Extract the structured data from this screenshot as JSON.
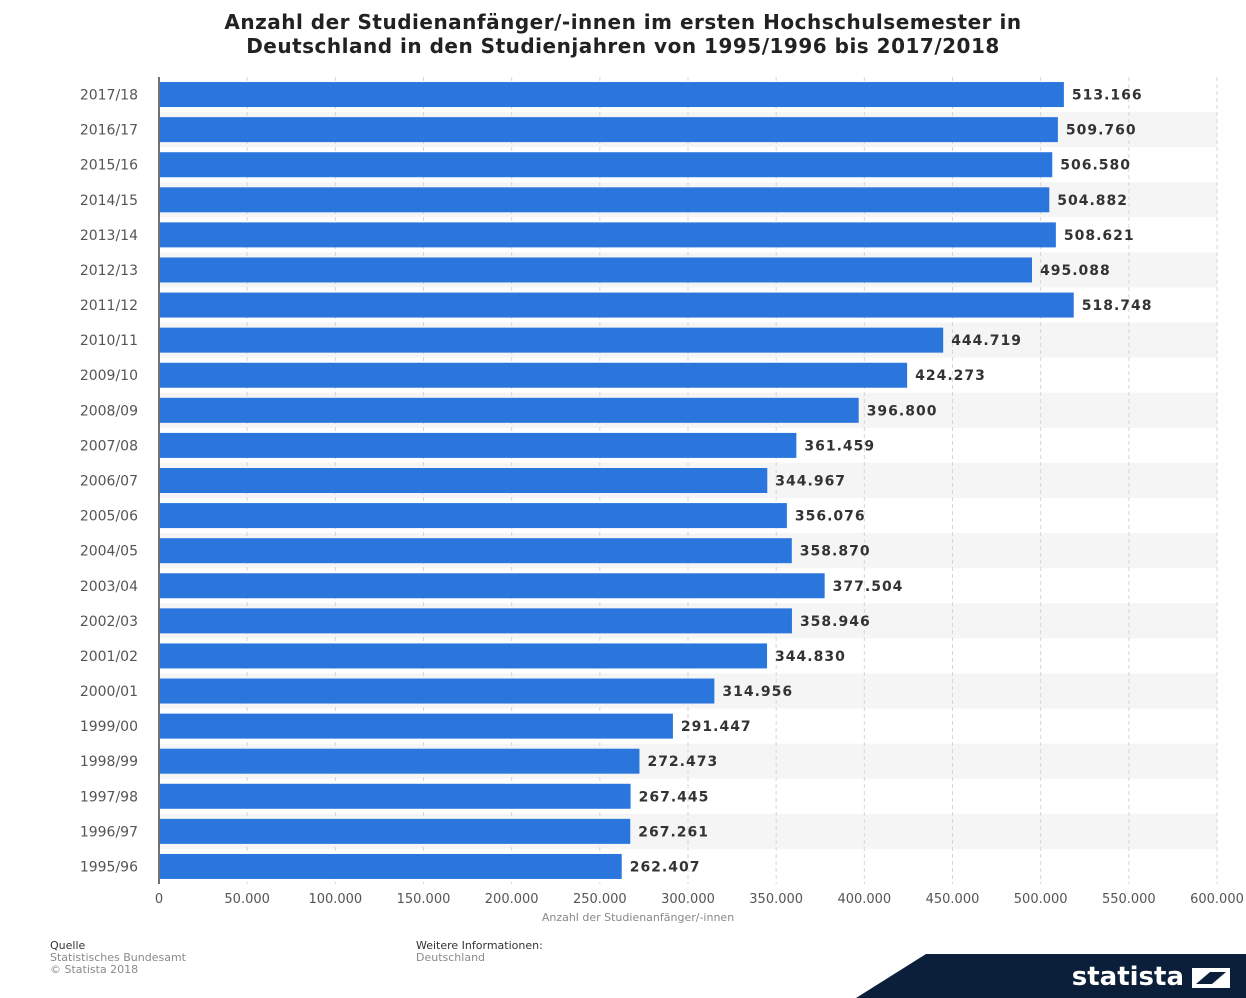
{
  "chart_data": {
    "type": "bar",
    "orientation": "horizontal",
    "title_lines": [
      "Anzahl der Studienanfänger/-innen im ersten Hochschulsemester in",
      "Deutschland in den Studienjahren von 1995/1996 bis 2017/2018"
    ],
    "xlabel": "Anzahl der Studienanfänger/-innen",
    "ylabel": "",
    "xlim": [
      0,
      600000
    ],
    "x_ticks": [
      0,
      50000,
      100000,
      150000,
      200000,
      250000,
      300000,
      350000,
      400000,
      450000,
      500000,
      550000,
      600000
    ],
    "x_tick_labels": [
      "0",
      "50.000",
      "100.000",
      "150.000",
      "200.000",
      "250.000",
      "300.000",
      "350.000",
      "400.000",
      "450.000",
      "500.000",
      "550.000",
      "600.000"
    ],
    "grid": true,
    "bar_color": "#2a76dd",
    "categories": [
      "2017/18",
      "2016/17",
      "2015/16",
      "2014/15",
      "2013/14",
      "2012/13",
      "2011/12",
      "2010/11",
      "2009/10",
      "2008/09",
      "2007/08",
      "2006/07",
      "2005/06",
      "2004/05",
      "2003/04",
      "2002/03",
      "2001/02",
      "2000/01",
      "1999/00",
      "1998/99",
      "1997/98",
      "1996/97",
      "1995/96"
    ],
    "values": [
      513166,
      509760,
      506580,
      504882,
      508621,
      495088,
      518748,
      444719,
      424273,
      396800,
      361459,
      344967,
      356076,
      358870,
      377504,
      358946,
      344830,
      314956,
      291447,
      272473,
      267445,
      267261,
      262407
    ],
    "value_labels": [
      "513.166",
      "509.760",
      "506.580",
      "504.882",
      "508.621",
      "495.088",
      "518.748",
      "444.719",
      "424.273",
      "396.800",
      "361.459",
      "344.967",
      "356.076",
      "358.870",
      "377.504",
      "358.946",
      "344.830",
      "314.956",
      "291.447",
      "272.473",
      "267.445",
      "267.261",
      "262.407"
    ]
  },
  "footer": {
    "source_heading": "Quelle",
    "source_lines": [
      "Statistisches Bundesamt",
      "© Statista 2018"
    ],
    "info_heading": "Weitere Informationen:",
    "info_lines": [
      "Deutschland"
    ]
  },
  "brand": {
    "name": "statista"
  }
}
